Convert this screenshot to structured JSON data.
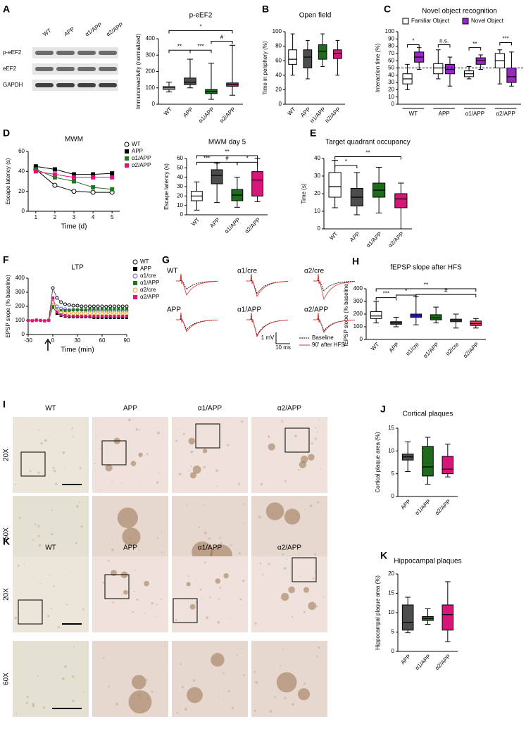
{
  "panel_labels": [
    "A",
    "B",
    "C",
    "D",
    "E",
    "F",
    "G",
    "H",
    "I",
    "J",
    "K",
    "K"
  ],
  "blot": {
    "lanes": [
      "WT",
      "APP",
      "α1/APP",
      "α2/APP"
    ],
    "rows": [
      "p-eEF2",
      "eEF2",
      "GAPDH"
    ]
  },
  "traces": {
    "labels": [
      "WT",
      "α1/cre",
      "α2/cre",
      "APP",
      "α1/APP",
      "α2/APP"
    ],
    "scale_y": "1 mV",
    "scale_x": "10 ms",
    "legend": [
      "Baseline",
      "90' after HFS"
    ]
  },
  "micrographs": [
    {
      "columns": [
        "WT",
        "APP",
        "α1/APP",
        "α2/APP"
      ],
      "rows": [
        "20X",
        "60X"
      ]
    },
    {
      "columns": [
        "WT",
        "APP",
        "α1/APP",
        "α2/APP"
      ],
      "rows": [
        "20X",
        "60X"
      ]
    }
  ],
  "chart_data": [
    {
      "type": "box",
      "title": "p-eEF2",
      "y_label": "Immunoreactivity (normalized)",
      "categories": [
        "WT",
        "APP",
        "α1/APP",
        "α2/APP"
      ],
      "colors": [
        "#d9d9d9",
        "#4d4d4d",
        "#1e6b1e",
        "#d6177a"
      ],
      "boxes": [
        [
          75,
          90,
          100,
          108,
          135
        ],
        [
          100,
          120,
          135,
          160,
          275
        ],
        [
          30,
          65,
          78,
          90,
          250
        ],
        [
          55,
          110,
          120,
          130,
          360
        ]
      ],
      "ylim": [
        0,
        400
      ],
      "yticks": [
        0,
        100,
        200,
        300,
        400
      ],
      "annotations": [
        "*",
        "**",
        "***",
        "#"
      ]
    },
    {
      "type": "box",
      "title": "Open field",
      "y_label": "Time in periphery (%)",
      "categories": [
        "WT",
        "APP",
        "α1/APP",
        "α2/APP"
      ],
      "colors": [
        "#ffffff",
        "#4d4d4d",
        "#1e6b1e",
        "#d6177a"
      ],
      "boxes": [
        [
          40,
          55,
          62,
          75,
          97
        ],
        [
          35,
          50,
          65,
          75,
          88
        ],
        [
          52,
          62,
          73,
          82,
          97
        ],
        [
          40,
          63,
          70,
          75,
          88
        ]
      ],
      "ylim": [
        0,
        100
      ],
      "yticks": [
        0,
        20,
        40,
        60,
        80,
        100
      ]
    },
    {
      "type": "box",
      "title": "Novel object recognition",
      "y_label": "Interaction time (%)",
      "categories": [
        "WT",
        "APP",
        "α1/APP",
        "α2/APP"
      ],
      "series": [
        {
          "name": "Familiar Object",
          "color": "#ffffff",
          "boxes": [
            [
              20,
              28,
              35,
              42,
              55
            ],
            [
              35,
              42,
              50,
              56,
              75
            ],
            [
              35,
              38,
              42,
              46,
              52
            ],
            [
              28,
              50,
              60,
              70,
              75
            ]
          ]
        },
        {
          "name": "Novel Object",
          "color": "#9b26c8",
          "boxes": [
            [
              48,
              58,
              65,
              72,
              78
            ],
            [
              25,
              42,
              48,
              55,
              65
            ],
            [
              48,
              55,
              60,
              64,
              68
            ],
            [
              25,
              30,
              38,
              50,
              72
            ]
          ]
        }
      ],
      "reference_line": 50,
      "ylim": [
        0,
        100
      ],
      "yticks": [
        0,
        10,
        20,
        30,
        40,
        50,
        60,
        70,
        80,
        90,
        100
      ],
      "annotations": [
        "*",
        "n.s.",
        "**",
        "***"
      ]
    },
    {
      "type": "line",
      "title": "MWM",
      "x_label": "Time (d)",
      "y_label": "Escape latency (s)",
      "x": [
        1,
        2,
        3,
        4,
        5
      ],
      "xlim": [
        0.6,
        5.4
      ],
      "xticks": [
        1,
        2,
        3,
        4,
        5
      ],
      "ylim": [
        0,
        60
      ],
      "yticks": [
        0,
        20,
        40,
        60
      ],
      "series": [
        {
          "name": "WT",
          "color": "#000000",
          "marker": "open-circle",
          "values": [
            42,
            26,
            20,
            19,
            19
          ]
        },
        {
          "name": "APP",
          "color": "#000000",
          "marker": "square",
          "values": [
            45,
            42,
            37,
            37,
            38
          ]
        },
        {
          "name": "α1/APP",
          "color": "#1e7b1e",
          "marker": "square",
          "values": [
            42,
            34,
            30,
            24,
            22
          ]
        },
        {
          "name": "α2/APP",
          "color": "#e0137a",
          "marker": "square",
          "values": [
            40,
            37,
            34,
            34,
            34
          ]
        }
      ]
    },
    {
      "type": "box",
      "title": "MWM day 5",
      "y_label": "Escape latency (s)",
      "categories": [
        "WT",
        "APP",
        "α1/APP",
        "α2/APP"
      ],
      "colors": [
        "#ffffff",
        "#4d4d4d",
        "#1e6b1e",
        "#d6177a"
      ],
      "boxes": [
        [
          5,
          15,
          20,
          25,
          35
        ],
        [
          13,
          33,
          42,
          48,
          55
        ],
        [
          8,
          15,
          21,
          27,
          40
        ],
        [
          14,
          20,
          37,
          46,
          60
        ]
      ],
      "ylim": [
        0,
        60
      ],
      "yticks": [
        0,
        10,
        20,
        30,
        40,
        50,
        60
      ],
      "annotations": [
        "***",
        "#",
        "*",
        "**"
      ]
    },
    {
      "type": "box",
      "title": "Target quadrant occupancy",
      "y_label": "Time (s)",
      "categories": [
        "WT",
        "APP",
        "α1/APP",
        "α2/APP"
      ],
      "colors": [
        "#ffffff",
        "#4d4d4d",
        "#1e6b1e",
        "#d6177a"
      ],
      "boxes": [
        [
          12,
          18,
          24,
          32,
          39
        ],
        [
          8,
          13,
          18,
          23,
          32
        ],
        [
          9,
          18,
          22,
          26,
          35
        ],
        [
          0,
          12,
          17,
          20,
          26
        ]
      ],
      "ylim": [
        0,
        40
      ],
      "yticks": [
        0,
        10,
        20,
        30,
        40
      ],
      "annotations": [
        "*",
        "**"
      ]
    },
    {
      "type": "line",
      "title": "LTP",
      "x_label": "Time (min)",
      "y_label": "EPSP slope (% baseline)",
      "x": [
        -30,
        -25,
        -20,
        -15,
        -10,
        -5,
        0,
        5,
        10,
        15,
        20,
        25,
        30,
        35,
        40,
        45,
        50,
        55,
        60,
        65,
        70,
        75,
        80,
        85,
        90
      ],
      "xlim": [
        -30,
        90
      ],
      "xticks": [
        -30,
        0,
        30,
        60,
        90
      ],
      "ylim": [
        0,
        400
      ],
      "yticks": [
        0,
        100,
        200,
        300,
        400
      ],
      "series": [
        {
          "name": "WT",
          "color": "#000000",
          "marker": "open-circle",
          "values": [
            100,
            98,
            102,
            100,
            97,
            101,
            330,
            260,
            230,
            215,
            210,
            205,
            205,
            200,
            200,
            200,
            200,
            200,
            200,
            198,
            200,
            200,
            200,
            200,
            200
          ]
        },
        {
          "name": "APP",
          "color": "#000000",
          "marker": "square",
          "values": [
            100,
            98,
            102,
            100,
            97,
            101,
            195,
            150,
            135,
            130,
            125,
            125,
            125,
            125,
            125,
            125,
            120,
            120,
            120,
            120,
            120,
            120,
            120,
            120,
            120
          ]
        },
        {
          "name": "α1/cre",
          "color": "#6a5acd",
          "marker": "open-circle",
          "values": [
            100,
            98,
            102,
            100,
            97,
            101,
            250,
            200,
            185,
            180,
            175,
            175,
            175,
            175,
            170,
            170,
            170,
            170,
            170,
            170,
            170,
            170,
            170,
            170,
            170
          ]
        },
        {
          "name": "α1/APP",
          "color": "#1e7b1e",
          "marker": "square",
          "values": [
            100,
            98,
            102,
            100,
            97,
            101,
            200,
            175,
            170,
            170,
            170,
            175,
            175,
            175,
            175,
            180,
            180,
            180,
            180,
            180,
            180,
            180,
            180,
            180,
            180
          ]
        },
        {
          "name": "α2/cre",
          "color": "#f39c34",
          "marker": "open-circle",
          "values": [
            100,
            98,
            102,
            100,
            97,
            101,
            230,
            170,
            155,
            150,
            150,
            150,
            150,
            150,
            150,
            150,
            150,
            150,
            150,
            150,
            150,
            150,
            150,
            150,
            150
          ]
        },
        {
          "name": "α2/APP",
          "color": "#e0137a",
          "marker": "square",
          "values": [
            100,
            98,
            102,
            100,
            97,
            101,
            260,
            160,
            140,
            135,
            130,
            130,
            130,
            130,
            130,
            130,
            130,
            130,
            130,
            130,
            130,
            130,
            130,
            130,
            130
          ]
        }
      ]
    },
    {
      "type": "box",
      "title": "fEPSP slope after HFS",
      "y_label": "fEPSP slope (% baseline)",
      "categories": [
        "WT",
        "APP",
        "α1/cre",
        "α1/APP",
        "α2/cre",
        "α2/APP"
      ],
      "colors": [
        "#ffffff",
        "#4d4d4d",
        "#2a2ad4",
        "#1e6b1e",
        "#666666",
        "#e8384f"
      ],
      "boxes": [
        [
          130,
          165,
          185,
          220,
          300
        ],
        [
          100,
          120,
          130,
          140,
          175
        ],
        [
          115,
          175,
          185,
          200,
          340
        ],
        [
          130,
          155,
          170,
          195,
          255
        ],
        [
          90,
          140,
          150,
          160,
          200
        ],
        [
          90,
          110,
          125,
          145,
          165
        ]
      ],
      "ylim": [
        0,
        400
      ],
      "yticks": [
        0,
        100,
        200,
        300,
        400
      ],
      "annotations": [
        "***",
        "*",
        "#",
        "**"
      ]
    },
    {
      "type": "box",
      "title": "Cortical plaques",
      "y_label": "Cortical plaque area (%)",
      "categories": [
        "APP",
        "α1/APP",
        "α2/APP"
      ],
      "colors": [
        "#4d4d4d",
        "#1e6b1e",
        "#d6177a"
      ],
      "boxes": [
        [
          5.5,
          8,
          8.7,
          9.3,
          12
        ],
        [
          2.7,
          4.5,
          6.5,
          11,
          13
        ],
        [
          4.3,
          5,
          6,
          8.8,
          11.5
        ]
      ],
      "ylim": [
        0,
        15
      ],
      "yticks": [
        0,
        5,
        10,
        15
      ]
    },
    {
      "type": "box",
      "title": "Hippocampal plaques",
      "y_label": "Hippocampal plaque area (%)",
      "categories": [
        "APP",
        "α1/APP",
        "α2/APP"
      ],
      "colors": [
        "#4d4d4d",
        "#1e6b1e",
        "#d6177a"
      ],
      "boxes": [
        [
          4.8,
          5.5,
          7.5,
          12,
          14
        ],
        [
          7,
          8,
          8.5,
          9,
          11
        ],
        [
          2.5,
          5.5,
          9.5,
          12,
          18
        ]
      ],
      "ylim": [
        0,
        20
      ],
      "yticks": [
        0,
        5,
        10,
        15,
        20
      ]
    }
  ]
}
